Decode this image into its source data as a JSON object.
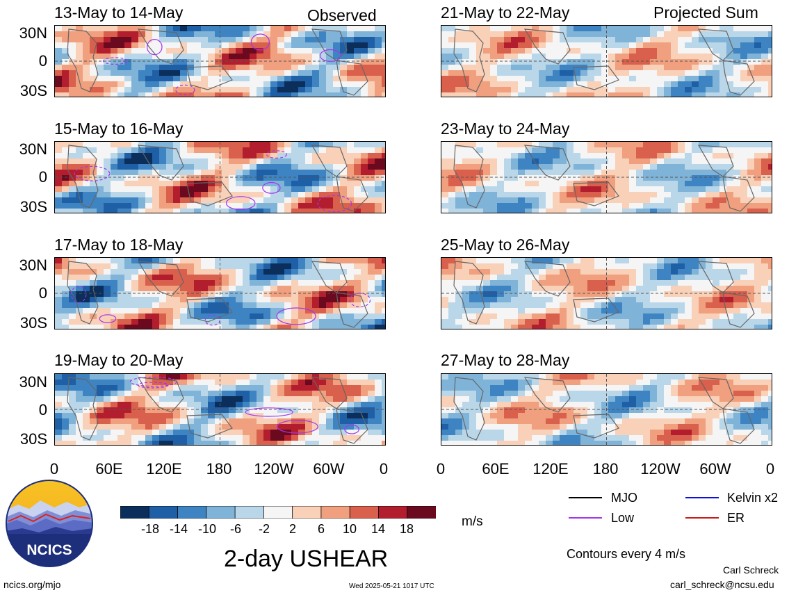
{
  "panels_left": [
    {
      "title": "13-May to 14-May",
      "header": "Observed"
    },
    {
      "title": "15-May to 16-May",
      "header": ""
    },
    {
      "title": "17-May to 18-May",
      "header": ""
    },
    {
      "title": "19-May to 20-May",
      "header": ""
    }
  ],
  "panels_right": [
    {
      "title": "21-May to 22-May",
      "header": "Projected Sum"
    },
    {
      "title": "23-May to 24-May",
      "header": ""
    },
    {
      "title": "25-May to 26-May",
      "header": ""
    },
    {
      "title": "27-May to 28-May",
      "header": ""
    }
  ],
  "lat_labels": [
    "30N",
    "0",
    "30S"
  ],
  "lon_labels": [
    "0",
    "60E",
    "120E",
    "180",
    "120W",
    "60W",
    "0"
  ],
  "colorbar": {
    "tick_labels": [
      "-18",
      "-14",
      "-10",
      "-6",
      "-2",
      "2",
      "6",
      "10",
      "14",
      "18"
    ],
    "units": "m/s",
    "colors": [
      "#0b2e5a",
      "#1f5fa6",
      "#3f84c2",
      "#7fb3d8",
      "#bad7ea",
      "#f5f5f5",
      "#f9d0b8",
      "#f0a07e",
      "#d9604c",
      "#b31e2e",
      "#6b0a1f"
    ]
  },
  "legend": {
    "items": [
      {
        "label": "MJO",
        "color": "#000000"
      },
      {
        "label": "Kelvin x2",
        "color": "#1010dd"
      },
      {
        "label": "Low",
        "color": "#a335ee"
      },
      {
        "label": "ER",
        "color": "#cc1a1a"
      }
    ],
    "contour_note": "Contours every 4 m/s"
  },
  "logo_text": "NCICS",
  "main_title": "2-day USHEAR",
  "footer": {
    "left": "ncics.org/mjo",
    "center": "Wed 2025-05-21 1017 UTC",
    "author": "Carl Schreck",
    "email": "carl_schreck@ncsu.edu"
  },
  "chart_data": [
    {
      "type": "heatmap",
      "title": "13-May to 14-May",
      "header": "Observed",
      "variable": "USHEAR",
      "units": "m/s",
      "x_ticks": [
        "0",
        "60E",
        "120E",
        "180",
        "120W",
        "60W",
        "0"
      ],
      "y_ticks": [
        "30N",
        "0",
        "30S"
      ],
      "color_levels": [
        -18,
        -14,
        -10,
        -6,
        -2,
        2,
        6,
        10,
        14,
        18
      ]
    },
    {
      "type": "heatmap",
      "title": "15-May to 16-May",
      "variable": "USHEAR",
      "units": "m/s"
    },
    {
      "type": "heatmap",
      "title": "17-May to 18-May",
      "variable": "USHEAR",
      "units": "m/s"
    },
    {
      "type": "heatmap",
      "title": "19-May to 20-May",
      "variable": "USHEAR",
      "units": "m/s"
    },
    {
      "type": "heatmap",
      "title": "21-May to 22-May",
      "header": "Projected Sum",
      "variable": "USHEAR",
      "units": "m/s"
    },
    {
      "type": "heatmap",
      "title": "23-May to 24-May",
      "variable": "USHEAR",
      "units": "m/s"
    },
    {
      "type": "heatmap",
      "title": "25-May to 26-May",
      "variable": "USHEAR",
      "units": "m/s"
    },
    {
      "type": "heatmap",
      "title": "27-May to 28-May",
      "variable": "USHEAR",
      "units": "m/s"
    }
  ]
}
